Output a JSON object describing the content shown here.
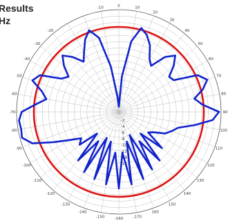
{
  "title_lines": [
    "Results",
    "Hz"
  ],
  "chart_data": {
    "type": "polar",
    "angle_ticks": [
      "-10",
      "0",
      "10",
      "20",
      "30",
      "40",
      "50",
      "60",
      "70",
      "80",
      "90",
      "100",
      "110",
      "120",
      "130",
      "140",
      "150",
      "160",
      "-170",
      "-160",
      "-150",
      "-140",
      "-130",
      "-120",
      "-110",
      "-100",
      "-90",
      "-80",
      "-70",
      "-60",
      "-50",
      "-40",
      "-30",
      "-20"
    ],
    "radial_ticks": [
      "-2",
      "-4",
      "-6",
      "-8",
      "-10",
      "-12",
      "-14",
      "-16"
    ],
    "grid": true,
    "series": [
      {
        "color": "#dd1111",
        "angles": [
          0,
          90,
          180,
          270
        ],
        "values": [
          1.0,
          1.0,
          1.0,
          1.0
        ]
      },
      {
        "color": "#1122cc",
        "angles": [
          0,
          5,
          10,
          15,
          20,
          25,
          30,
          35,
          40,
          45,
          50,
          55,
          60,
          65,
          70,
          75,
          80,
          85,
          90,
          95,
          100,
          105,
          110,
          115,
          120,
          125,
          130,
          135,
          140,
          145,
          150,
          155,
          160,
          165,
          170,
          175,
          180,
          185,
          190,
          195,
          200,
          205,
          210,
          215,
          220,
          225,
          230,
          235,
          240,
          245,
          250,
          255,
          260,
          265,
          270,
          275,
          280,
          285,
          290,
          295,
          300,
          305,
          310,
          315,
          320,
          325,
          330,
          335,
          340,
          345,
          350,
          355
        ],
        "values": [
          0.05,
          0.35,
          0.7,
          0.85,
          0.8,
          0.72,
          0.6,
          0.55,
          0.7,
          0.78,
          0.7,
          0.6,
          0.62,
          0.85,
          0.92,
          0.85,
          0.75,
          0.82,
          0.98,
          0.92,
          0.75,
          0.6,
          0.55,
          0.5,
          0.4,
          0.35,
          0.55,
          0.3,
          0.62,
          0.35,
          0.65,
          0.25,
          0.7,
          0.3,
          0.72,
          0.4,
          0.75,
          0.4,
          0.72,
          0.3,
          0.7,
          0.28,
          0.68,
          0.35,
          0.62,
          0.3,
          0.5,
          0.45,
          0.55,
          0.7,
          0.9,
          0.98,
          0.97,
          0.98,
          0.95,
          0.82,
          0.72,
          0.78,
          0.9,
          0.85,
          0.65,
          0.6,
          0.7,
          0.78,
          0.7,
          0.6,
          0.68,
          0.78,
          0.85,
          0.75,
          0.45,
          0.15
        ]
      }
    ]
  }
}
